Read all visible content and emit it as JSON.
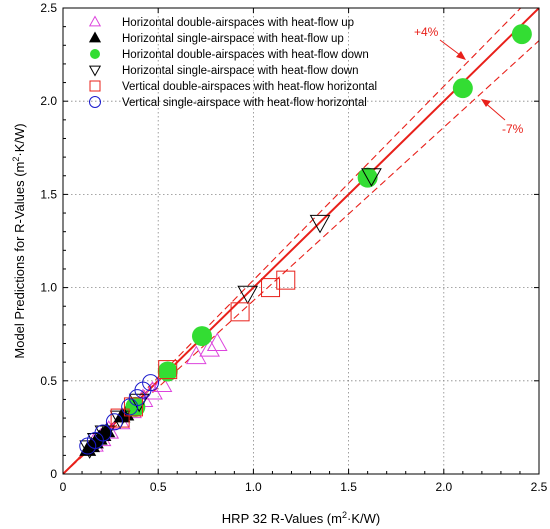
{
  "chart_data": {
    "type": "scatter",
    "xlabel": "HRP 32 R-Values (m",
    "xlabel_sup": "2",
    "xlabel_tail": "·K/W)",
    "ylabel": "Model Predictions for R-Values (m",
    "ylabel_sup": "2",
    "ylabel_tail": "·K/W)",
    "xlim": [
      0,
      2.5
    ],
    "ylim": [
      0,
      2.5
    ],
    "xticks": [
      "0",
      "0.5",
      "1.0",
      "1.5",
      "2.0",
      "2.5"
    ],
    "yticks": [
      "0",
      "0.5",
      "1.0",
      "1.5",
      "2.0",
      "2.5"
    ],
    "xticks_values": [
      0,
      0.5,
      1.0,
      1.5,
      2.0,
      2.5
    ],
    "yticks_values": [
      0,
      0.5,
      1.0,
      1.5,
      2.0,
      2.5
    ],
    "grid": true,
    "grid_step": 0.5,
    "legend_position": "top-left",
    "accent_color": "#e8201a",
    "lines": [
      {
        "label": "",
        "slope": 1.0,
        "style": "solid",
        "color": "#e8201a"
      },
      {
        "label": "+4%",
        "slope": 1.04,
        "style": "dashed",
        "color": "#e8201a"
      },
      {
        "label": "-7%",
        "slope": 0.93,
        "style": "dashed",
        "color": "#e8201a"
      }
    ],
    "annotations": [
      {
        "text": "+4%",
        "color": "#e8201a"
      },
      {
        "text": "-7%",
        "color": "#e8201a"
      }
    ],
    "series": [
      {
        "name": "Horizontal double-airspaces with heat-flow up",
        "marker": "triangle-up-open",
        "color": "#dd44dd",
        "x": [
          0.16,
          0.2,
          0.24,
          0.3,
          0.36,
          0.42,
          0.47,
          0.52,
          0.7,
          0.77,
          0.81
        ],
        "y": [
          0.16,
          0.19,
          0.23,
          0.28,
          0.34,
          0.4,
          0.44,
          0.48,
          0.63,
          0.67,
          0.7
        ]
      },
      {
        "name": "Horizontal single-airspace with heat-flow up",
        "marker": "triangle-up-filled",
        "color": "#000000",
        "x": [
          0.13,
          0.15,
          0.17,
          0.19,
          0.21,
          0.23,
          0.31,
          0.33
        ],
        "y": [
          0.13,
          0.15,
          0.17,
          0.19,
          0.21,
          0.23,
          0.31,
          0.32
        ]
      },
      {
        "name": "Horizontal double-airspaces with heat-flow down",
        "marker": "circle-filled",
        "color": "#33dd33",
        "x": [
          0.38,
          0.55,
          0.73,
          1.6,
          2.1,
          2.41
        ],
        "y": [
          0.36,
          0.55,
          0.74,
          1.59,
          2.07,
          2.36
        ]
      },
      {
        "name": "Horizontal single-airspace with heat-flow down",
        "marker": "triangle-down-open",
        "color": "#000000",
        "x": [
          0.14,
          0.18,
          0.22,
          0.3,
          0.4,
          0.97,
          1.35,
          1.62
        ],
        "y": [
          0.14,
          0.18,
          0.22,
          0.3,
          0.39,
          0.97,
          1.35,
          1.6
        ]
      },
      {
        "name": "Vertical double-airspaces with heat-flow horizontal",
        "marker": "square-open",
        "color": "#e8201a",
        "x": [
          0.3,
          0.37,
          0.55,
          0.93,
          1.09,
          1.17
        ],
        "y": [
          0.3,
          0.36,
          0.56,
          0.87,
          1.0,
          1.04
        ]
      },
      {
        "name": "Vertical single-airspace with heat-flow horizontal",
        "marker": "circle-open",
        "color": "#1a1acc",
        "x": [
          0.13,
          0.17,
          0.21,
          0.27,
          0.35,
          0.39,
          0.42,
          0.46
        ],
        "y": [
          0.15,
          0.18,
          0.22,
          0.28,
          0.36,
          0.41,
          0.45,
          0.49
        ]
      }
    ]
  }
}
